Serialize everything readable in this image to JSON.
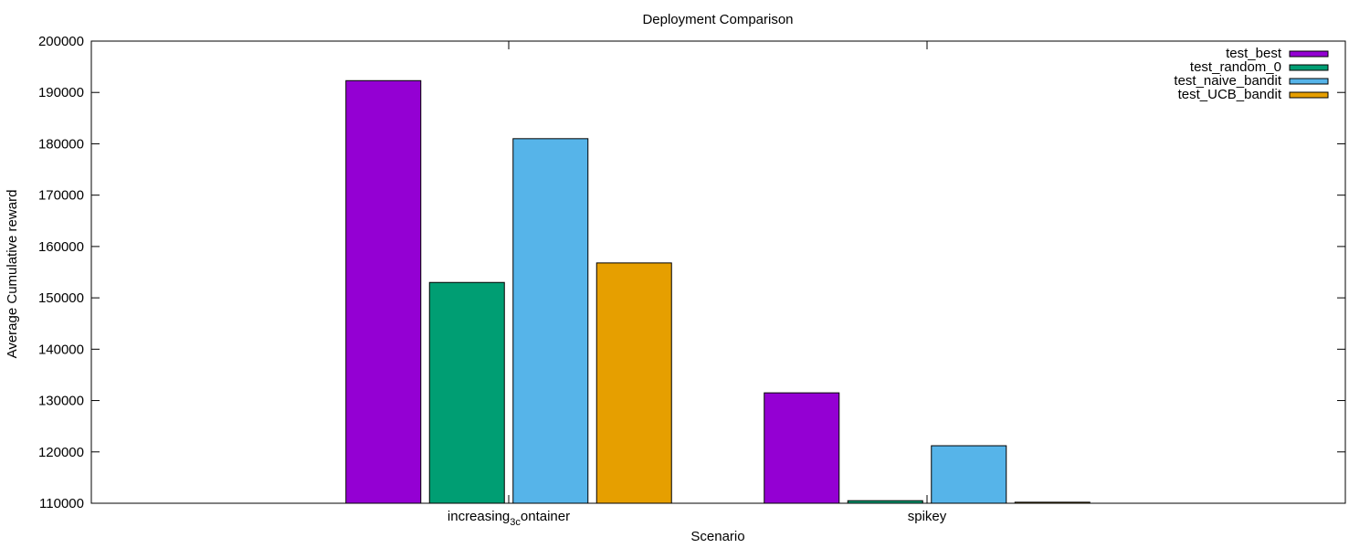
{
  "chart_data": {
    "type": "bar",
    "title": "Deployment Comparison",
    "xlabel": "Scenario",
    "ylabel": "Average Cumulative reward",
    "categories": [
      "increasing_3container",
      "spikey"
    ],
    "category_labels": [
      {
        "main": "increasing",
        "sub": "3c",
        "rest": "ontainer"
      },
      {
        "main": "spikey",
        "sub": "",
        "rest": ""
      }
    ],
    "ylim": [
      110000,
      200000
    ],
    "yticks": [
      "110000",
      "120000",
      "130000",
      "140000",
      "150000",
      "160000",
      "170000",
      "180000",
      "190000",
      "200000"
    ],
    "ytick_values": [
      110000,
      120000,
      130000,
      140000,
      150000,
      160000,
      170000,
      180000,
      190000,
      200000
    ],
    "legend_position": "top-right",
    "grid": false,
    "series": [
      {
        "name": "test_best",
        "color": "#9400D3",
        "values": [
          192300,
          131500
        ]
      },
      {
        "name": "test_random_0",
        "color": "#009E73",
        "values": [
          153000,
          110500
        ]
      },
      {
        "name": "test_naive_bandit",
        "color": "#56B4E9",
        "values": [
          181000,
          121200
        ]
      },
      {
        "name": "test_UCB_bandit",
        "color": "#E69F00",
        "values": [
          156800,
          110200
        ]
      }
    ]
  }
}
